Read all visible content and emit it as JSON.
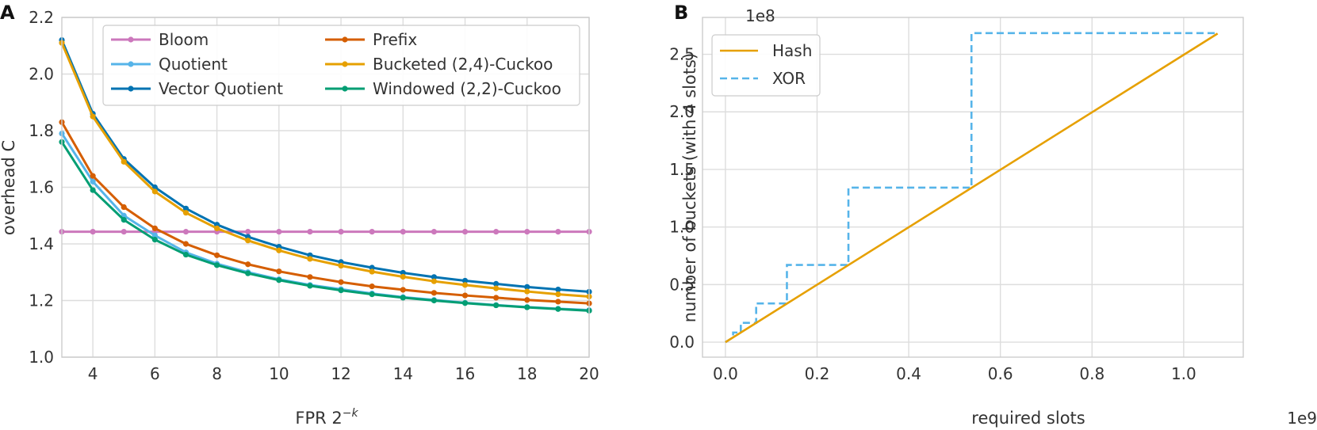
{
  "panels": {
    "a": {
      "letter": "A"
    },
    "b": {
      "letter": "B"
    }
  },
  "chart_data": [
    {
      "type": "line",
      "panel": "A",
      "title": "",
      "xlabel": "FPR 2",
      "xlabel_superscript": "−k",
      "ylabel": "overhead C",
      "xlim": [
        3,
        20
      ],
      "ylim": [
        1.0,
        2.2
      ],
      "xticks": [
        4,
        6,
        8,
        10,
        12,
        14,
        16,
        18,
        20
      ],
      "yticks": [
        1.0,
        1.2,
        1.4,
        1.6,
        1.8,
        2.0,
        2.2
      ],
      "ytick_labels": [
        "1.0",
        "1.2",
        "1.4",
        "1.6",
        "1.8",
        "2.0",
        "2.2"
      ],
      "grid": true,
      "legend": "top-right",
      "legend_columns": 2,
      "x": [
        3,
        4,
        5,
        6,
        7,
        8,
        9,
        10,
        11,
        12,
        13,
        14,
        15,
        16,
        17,
        18,
        19,
        20
      ],
      "series": [
        {
          "name": "Bloom",
          "color": "#cc78bc",
          "values": [
            1.443,
            1.443,
            1.443,
            1.443,
            1.443,
            1.443,
            1.443,
            1.443,
            1.443,
            1.443,
            1.443,
            1.443,
            1.443,
            1.443,
            1.443,
            1.443,
            1.443,
            1.443
          ]
        },
        {
          "name": "Quotient",
          "color": "#56b4e9",
          "values": [
            1.79,
            1.62,
            1.5,
            1.43,
            1.37,
            1.33,
            1.3,
            1.275,
            1.255,
            1.24,
            1.225,
            1.212,
            1.202,
            1.192,
            1.184,
            1.177,
            1.171,
            1.166
          ]
        },
        {
          "name": "Vector Quotient",
          "color": "#0173b2",
          "values": [
            2.12,
            1.86,
            1.7,
            1.6,
            1.525,
            1.468,
            1.425,
            1.39,
            1.36,
            1.336,
            1.316,
            1.298,
            1.283,
            1.27,
            1.259,
            1.248,
            1.239,
            1.231
          ]
        },
        {
          "name": "Prefix",
          "color": "#d55e00",
          "values": [
            1.83,
            1.64,
            1.53,
            1.455,
            1.4,
            1.36,
            1.328,
            1.303,
            1.283,
            1.265,
            1.25,
            1.238,
            1.227,
            1.218,
            1.21,
            1.202,
            1.196,
            1.19
          ]
        },
        {
          "name": "Bucketed (2,4)-Cuckoo",
          "color": "#e6a000",
          "values": [
            2.11,
            1.85,
            1.69,
            1.585,
            1.51,
            1.455,
            1.412,
            1.377,
            1.347,
            1.323,
            1.302,
            1.284,
            1.268,
            1.255,
            1.243,
            1.232,
            1.222,
            1.214
          ]
        },
        {
          "name": "Windowed (2,2)-Cuckoo",
          "color": "#029e73",
          "values": [
            1.76,
            1.59,
            1.485,
            1.415,
            1.362,
            1.325,
            1.296,
            1.272,
            1.252,
            1.236,
            1.222,
            1.21,
            1.2,
            1.191,
            1.183,
            1.176,
            1.17,
            1.164
          ]
        }
      ]
    },
    {
      "type": "line",
      "panel": "B",
      "title": "",
      "xlabel": "required slots",
      "ylabel": "number of buckets (with 4 slots)",
      "x_offset_label": "1e9",
      "y_offset_label": "1e8",
      "xlim": [
        -0.05,
        1.13
      ],
      "ylim": [
        -0.13,
        2.82
      ],
      "xticks": [
        0.0,
        0.2,
        0.4,
        0.6,
        0.8,
        1.0
      ],
      "xtick_labels": [
        "0.0",
        "0.2",
        "0.4",
        "0.6",
        "0.8",
        "1.0"
      ],
      "yticks": [
        0.0,
        0.5,
        1.0,
        1.5,
        2.0,
        2.5
      ],
      "ytick_labels": [
        "0.0",
        "0.5",
        "1.0",
        "1.5",
        "2.0",
        "2.5"
      ],
      "grid": true,
      "legend": "top-left",
      "series": [
        {
          "name": "Hash",
          "color": "#e6a000",
          "style": "solid",
          "x": [
            0.0,
            1.074
          ],
          "values": [
            0.0,
            2.68
          ]
        },
        {
          "name": "XOR",
          "color": "#56b4e9",
          "style": "dashed",
          "x": [
            0.0,
            0.0168,
            0.0168,
            0.0336,
            0.0336,
            0.0671,
            0.0671,
            0.1342,
            0.1342,
            0.2684,
            0.2684,
            0.5369,
            0.5369,
            1.074
          ],
          "values": [
            0.0,
            0.042,
            0.084,
            0.084,
            0.168,
            0.168,
            0.336,
            0.336,
            0.671,
            0.671,
            1.342,
            1.342,
            2.684,
            2.684
          ]
        }
      ]
    }
  ]
}
